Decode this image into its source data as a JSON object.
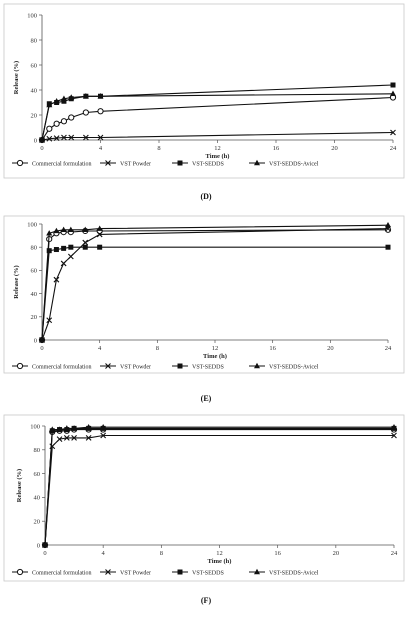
{
  "panels": [
    {
      "caption": "(D)",
      "chart_data": {
        "type": "line",
        "xlabel": "Time (h)",
        "ylabel": "Release (%)",
        "xlim": [
          0,
          24
        ],
        "ylim": [
          0,
          100
        ],
        "x_ticks": [
          "0",
          "4",
          "8",
          "12",
          "16",
          "20",
          "24"
        ],
        "y_ticks": [
          "0",
          "20",
          "40",
          "60",
          "80",
          "100"
        ],
        "grid": false,
        "legend_position": "bottom",
        "series": [
          {
            "name": "Commercial formulation",
            "marker": "circle",
            "x": [
              0,
              0.5,
              1,
              1.5,
              2,
              3,
              4,
              24
            ],
            "values": [
              0,
              9,
              13,
              15,
              18,
              22,
              23,
              34
            ]
          },
          {
            "name": "VST Powder",
            "marker": "x",
            "x": [
              0,
              0.5,
              1,
              1.5,
              2,
              3,
              4,
              24
            ],
            "values": [
              0,
              1,
              1.5,
              2,
              2,
              2,
              2,
              6
            ]
          },
          {
            "name": "VST-SEDDS",
            "marker": "square",
            "x": [
              0,
              0.5,
              1,
              1.5,
              2,
              3,
              4,
              24
            ],
            "values": [
              0,
              29,
              30,
              31,
              33,
              35,
              35,
              44
            ]
          },
          {
            "name": "VST-SEDDS-Avicel",
            "marker": "triangle",
            "x": [
              0,
              0.5,
              1,
              1.5,
              2,
              3,
              4,
              24
            ],
            "values": [
              0,
              28,
              31,
              33,
              34,
              35,
              35,
              37
            ]
          }
        ]
      }
    },
    {
      "caption": "(E)",
      "chart_data": {
        "type": "line",
        "xlabel": "Time (h)",
        "ylabel": "Release (%)",
        "xlim": [
          0,
          24
        ],
        "ylim": [
          0,
          100
        ],
        "x_ticks": [
          "0",
          "4",
          "8",
          "12",
          "16",
          "20",
          "24"
        ],
        "y_ticks": [
          "0",
          "20",
          "40",
          "60",
          "80",
          "100"
        ],
        "grid": false,
        "legend_position": "bottom",
        "series": [
          {
            "name": "Commercial formulation",
            "marker": "circle",
            "x": [
              0,
              0.5,
              1,
              1.5,
              2,
              3,
              4,
              24
            ],
            "values": [
              0,
              87,
              92,
              93,
              93,
              94,
              94,
              95
            ]
          },
          {
            "name": "VST Powder",
            "marker": "x",
            "x": [
              0,
              0.5,
              1,
              1.5,
              2,
              3,
              4,
              24
            ],
            "values": [
              0,
              17,
              52,
              66,
              72,
              84,
              91,
              96
            ]
          },
          {
            "name": "VST-SEDDS",
            "marker": "square",
            "x": [
              0,
              0.5,
              1,
              1.5,
              2,
              3,
              4,
              24
            ],
            "values": [
              0,
              77,
              78,
              79,
              80,
              80,
              80,
              80
            ]
          },
          {
            "name": "VST-SEDDS-Avicel",
            "marker": "triangle",
            "x": [
              0,
              0.5,
              1,
              1.5,
              2,
              3,
              4,
              24
            ],
            "values": [
              0,
              92,
              94,
              95,
              95,
              95,
              96,
              99
            ]
          }
        ]
      }
    },
    {
      "caption": "(F)",
      "chart_data": {
        "type": "line",
        "xlabel": "Time (h)",
        "ylabel": "Release (%)",
        "xlim": [
          0,
          24
        ],
        "ylim": [
          0,
          100
        ],
        "x_ticks": [
          "0",
          "4",
          "8",
          "12",
          "16",
          "20",
          "24"
        ],
        "y_ticks": [
          "0",
          "20",
          "40",
          "60",
          "80",
          "100"
        ],
        "grid": false,
        "legend_position": "bottom",
        "series": [
          {
            "name": "Commercial formulation",
            "marker": "circle",
            "x": [
              0,
              0.5,
              1,
              1.5,
              2,
              3,
              4,
              24
            ],
            "values": [
              0,
              95,
              96,
              96,
              97,
              97,
              97,
              97
            ]
          },
          {
            "name": "VST Powder",
            "marker": "x",
            "x": [
              0,
              0.5,
              1,
              1.5,
              2,
              3,
              4,
              24
            ],
            "values": [
              0,
              83,
              89,
              90,
              90,
              90,
              92,
              92
            ]
          },
          {
            "name": "VST-SEDDS",
            "marker": "square",
            "x": [
              0,
              0.5,
              1,
              1.5,
              2,
              3,
              4,
              24
            ],
            "values": [
              0,
              96,
              97,
              97,
              98,
              98,
              98,
              98
            ]
          },
          {
            "name": "VST-SEDDS-Avicel",
            "marker": "triangle",
            "x": [
              0,
              0.5,
              1,
              1.5,
              2,
              3,
              4,
              24
            ],
            "values": [
              0,
              97,
              97,
              98,
              98,
              99,
              99,
              99
            ]
          }
        ]
      }
    }
  ]
}
